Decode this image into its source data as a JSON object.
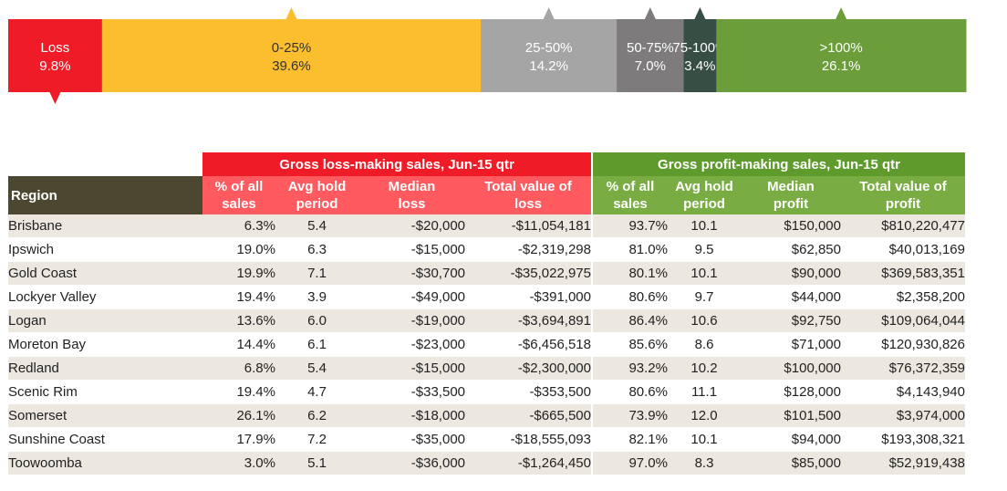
{
  "chart_data": [
    {
      "type": "bar",
      "orientation": "horizontal-stacked",
      "categories": [
        "Loss",
        "0-25%",
        "25-50%",
        "50-75%",
        "75-100%",
        ">100%"
      ],
      "values": [
        9.8,
        39.6,
        14.2,
        7.0,
        3.4,
        26.1
      ],
      "value_labels": [
        "9.8%",
        "39.6%",
        "14.2%",
        "7.0%",
        "3.4%",
        "26.1%"
      ],
      "colors": [
        "#ef1c28",
        "#fbbe2e",
        "#a5a5a5",
        "#7d7b7b",
        "#374e45",
        "#6b9e3a"
      ]
    },
    {
      "type": "table",
      "region_header": "Region",
      "groups": [
        {
          "title": "Gross loss-making sales, Jun-15 qtr",
          "color": "#ef1c28",
          "subcolor": "#ff5a5f"
        },
        {
          "title": "Gross profit-making sales, Jun-15 qtr",
          "color": "#5e9a2c",
          "subcolor": "#79ad43"
        }
      ],
      "columns": [
        "% of all\nsales",
        "Avg hold\nperiod",
        "Median\nloss",
        "Total value of\nloss",
        "% of all\nsales",
        "Avg hold\nperiod",
        "Median\nprofit",
        "Total value of\nprofit"
      ],
      "rows": [
        [
          "Brisbane",
          "6.3%",
          "5.4",
          "-$20,000",
          "-$11,054,181",
          "93.7%",
          "10.1",
          "$150,000",
          "$810,220,477"
        ],
        [
          "Ipswich",
          "19.0%",
          "6.3",
          "-$15,000",
          "-$2,319,298",
          "81.0%",
          "9.5",
          "$62,850",
          "$40,013,169"
        ],
        [
          "Gold Coast",
          "19.9%",
          "7.1",
          "-$30,700",
          "-$35,022,975",
          "80.1%",
          "10.1",
          "$90,000",
          "$369,583,351"
        ],
        [
          "Lockyer Valley",
          "19.4%",
          "3.9",
          "-$49,000",
          "-$391,000",
          "80.6%",
          "9.7",
          "$44,000",
          "$2,358,200"
        ],
        [
          "Logan",
          "13.6%",
          "6.0",
          "-$19,000",
          "-$3,694,891",
          "86.4%",
          "10.6",
          "$92,750",
          "$109,064,044"
        ],
        [
          "Moreton Bay",
          "14.4%",
          "6.1",
          "-$23,000",
          "-$6,456,518",
          "85.6%",
          "8.6",
          "$71,000",
          "$120,930,826"
        ],
        [
          "Redland",
          "6.8%",
          "5.4",
          "-$15,000",
          "-$2,300,000",
          "93.2%",
          "10.2",
          "$100,000",
          "$76,372,359"
        ],
        [
          "Scenic Rim",
          "19.4%",
          "4.7",
          "-$33,500",
          "-$353,500",
          "80.6%",
          "11.1",
          "$128,000",
          "$4,143,940"
        ],
        [
          "Somerset",
          "26.1%",
          "6.2",
          "-$18,000",
          "-$665,500",
          "73.9%",
          "12.0",
          "$101,500",
          "$3,974,000"
        ],
        [
          "Sunshine Coast",
          "17.9%",
          "7.2",
          "-$35,000",
          "-$18,555,093",
          "82.1%",
          "10.1",
          "$94,000",
          "$193,308,321"
        ],
        [
          "Toowoomba",
          "3.0%",
          "5.1",
          "-$36,000",
          "-$1,264,450",
          "97.0%",
          "8.3",
          "$85,000",
          "$52,919,438"
        ]
      ],
      "header_colors": {
        "region": "#4b4730",
        "row_a": "#ece8df",
        "row_b": "#ffffff"
      }
    }
  ]
}
